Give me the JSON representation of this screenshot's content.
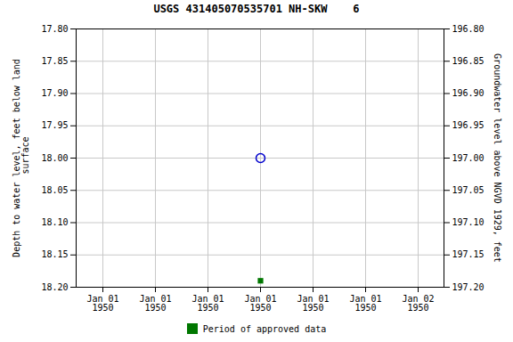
{
  "chart_data": {
    "type": "scatter",
    "title": "USGS 431405070535701 NH-SKW    6",
    "ylabel": "Depth to water level, feet below land\n surface",
    "y2label": "Groundwater level above NGVD 1929, feet",
    "categories": [
      "Jan 01\n1950",
      "Jan 01\n1950",
      "Jan 01\n1950",
      "Jan 01\n1950",
      "Jan 01\n1950",
      "Jan 01\n1950",
      "Jan 02\n1950"
    ],
    "series": [
      {
        "color": "#0000cc",
        "marker": "open_circle",
        "values": [
          null,
          null,
          null,
          18.0,
          null,
          null,
          null
        ]
      },
      {
        "name": "Period of approved data",
        "color": "#007700",
        "marker": "square",
        "values": [
          null,
          null,
          null,
          18.19,
          null,
          null,
          null
        ]
      }
    ],
    "ylim": [
      18.2,
      17.8
    ],
    "yticks": [
      {
        "value": 17.8,
        "label": "17.80"
      },
      {
        "value": 17.85,
        "label": "17.85"
      },
      {
        "value": 17.9,
        "label": "17.90"
      },
      {
        "value": 17.95,
        "label": "17.95"
      },
      {
        "value": 18.0,
        "label": "18.00"
      },
      {
        "value": 18.05,
        "label": "18.05"
      },
      {
        "value": 18.1,
        "label": "18.10"
      },
      {
        "value": 18.15,
        "label": "18.15"
      },
      {
        "value": 18.2,
        "label": "18.20"
      }
    ],
    "y2lim": [
      197.2,
      196.8
    ],
    "y2ticks": [
      {
        "value": 197.2,
        "label": "197.20"
      },
      {
        "value": 197.15,
        "label": "197.15"
      },
      {
        "value": 197.1,
        "label": "197.10"
      },
      {
        "value": 197.05,
        "label": "197.05"
      },
      {
        "value": 197.0,
        "label": "197.00"
      },
      {
        "value": 196.95,
        "label": "196.95"
      },
      {
        "value": 196.9,
        "label": "196.90"
      },
      {
        "value": 196.85,
        "label": "196.85"
      },
      {
        "value": 196.8,
        "label": "196.80"
      }
    ],
    "grid": true,
    "legend": "bottom"
  }
}
